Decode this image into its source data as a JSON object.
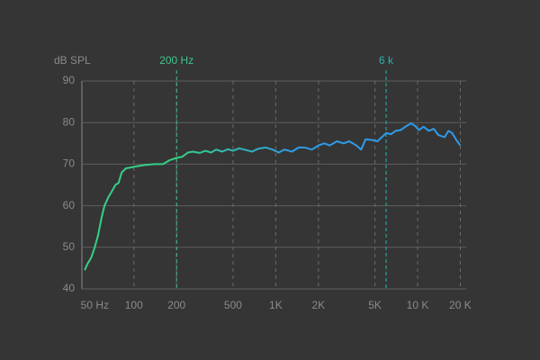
{
  "chart_data": {
    "type": "line",
    "y_label": "dB SPL",
    "xscale": "log",
    "xlim": [
      43,
      22000
    ],
    "ylim": [
      40,
      90
    ],
    "yticks": [
      40,
      50,
      60,
      70,
      80,
      90
    ],
    "xticks": [
      {
        "value": 50,
        "label": "50 Hz"
      },
      {
        "value": 100,
        "label": "100"
      },
      {
        "value": 200,
        "label": "200"
      },
      {
        "value": 500,
        "label": "500"
      },
      {
        "value": 1000,
        "label": "1K"
      },
      {
        "value": 2000,
        "label": "2K"
      },
      {
        "value": 5000,
        "label": "5K"
      },
      {
        "value": 10000,
        "label": "10 K"
      },
      {
        "value": 20000,
        "label": "20 K"
      }
    ],
    "grid": true,
    "annotations": [
      {
        "text": "200 Hz",
        "x": 200,
        "color": "#3fc48a"
      },
      {
        "text": "6 k",
        "x": 6000,
        "color": "#2bb3a8"
      }
    ],
    "x": [
      45,
      47,
      50,
      53,
      56,
      59,
      62,
      66,
      70,
      74,
      78,
      82,
      88,
      95,
      105,
      120,
      140,
      160,
      180,
      200,
      220,
      240,
      260,
      290,
      320,
      350,
      380,
      420,
      460,
      500,
      550,
      600,
      680,
      750,
      850,
      950,
      1050,
      1150,
      1300,
      1450,
      1600,
      1800,
      2000,
      2200,
      2400,
      2700,
      3000,
      3300,
      3700,
      4000,
      4300,
      4800,
      5200,
      5600,
      6000,
      6500,
      7000,
      7600,
      8200,
      9000,
      9600,
      10200,
      11000,
      12000,
      13000,
      14000,
      15500,
      16500,
      17500,
      19000,
      20000
    ],
    "series": [
      {
        "colors": [
          "#35d088",
          "#2f9ae8"
        ],
        "values": [
          44.5,
          46,
          47.5,
          50,
          53,
          57,
          60,
          62,
          63.5,
          65,
          65.5,
          68,
          69,
          69.2,
          69.5,
          69.8,
          70,
          70,
          71,
          71.5,
          71.8,
          72.8,
          73,
          72.7,
          73.2,
          72.8,
          73.5,
          73,
          73.6,
          73.2,
          73.8,
          73.5,
          73,
          73.7,
          74,
          73.5,
          72.8,
          73.5,
          73,
          74,
          74,
          73.5,
          74.5,
          75,
          74.5,
          75.5,
          75,
          75.5,
          74.5,
          73.5,
          76,
          75.8,
          75.5,
          76.5,
          77.5,
          77.2,
          78,
          78.2,
          79,
          79.8,
          79.2,
          78.2,
          79,
          78,
          78.5,
          77,
          76.5,
          78,
          77.5,
          75.5,
          74.5
        ]
      }
    ]
  }
}
